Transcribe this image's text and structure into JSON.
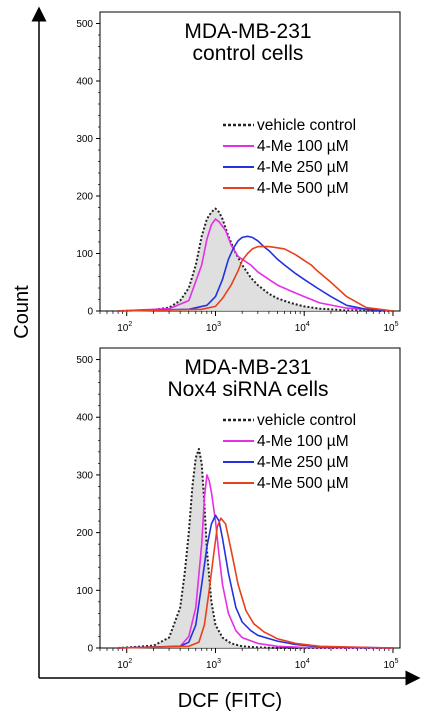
{
  "ylabel": "Count",
  "xlabel": "DCF (FITC)",
  "chart_data": [
    {
      "type": "line",
      "title_lines": [
        "MDA-MB-231",
        "control cells"
      ],
      "x_scale": "log",
      "xlim": [
        50,
        120000
      ],
      "ylim": [
        0,
        520
      ],
      "y_ticks": [
        0,
        100,
        200,
        300,
        400,
        500
      ],
      "x_ticks": [
        {
          "value": 100,
          "base": "10",
          "exp": "2"
        },
        {
          "value": 1000,
          "base": "10",
          "exp": "3"
        },
        {
          "value": 10000,
          "base": "10",
          "exp": "4"
        },
        {
          "value": 100000,
          "base": "10",
          "exp": "5"
        }
      ],
      "legend_position": "top-right",
      "series": [
        {
          "name": "vehicle control",
          "color": "#222222",
          "dashed": true,
          "filled": true,
          "x": [
            80,
            200,
            300,
            400,
            500,
            600,
            700,
            800,
            900,
            1000,
            1100,
            1200,
            1400,
            1700,
            2000,
            2500,
            3000,
            4000,
            5000,
            7000,
            10000,
            15000,
            30000,
            100000
          ],
          "y": [
            0,
            2,
            6,
            18,
            40,
            80,
            130,
            160,
            172,
            178,
            172,
            160,
            130,
            100,
            80,
            58,
            45,
            30,
            22,
            14,
            8,
            4,
            1,
            0
          ]
        },
        {
          "name": "4-Me 100 µM",
          "color": "#e62ee6",
          "dashed": false,
          "filled": false,
          "x": [
            80,
            300,
            500,
            700,
            800,
            900,
            1000,
            1100,
            1300,
            1500,
            1800,
            2000,
            2500,
            3000,
            4000,
            5000,
            7000,
            10000,
            15000,
            30000,
            100000
          ],
          "y": [
            0,
            4,
            18,
            80,
            125,
            150,
            160,
            155,
            140,
            115,
            95,
            90,
            80,
            68,
            55,
            45,
            35,
            25,
            14,
            5,
            0
          ]
        },
        {
          "name": "4-Me 250 µM",
          "color": "#2233dd",
          "dashed": false,
          "filled": false,
          "x": [
            80,
            500,
            800,
            1000,
            1200,
            1400,
            1600,
            1800,
            2000,
            2300,
            2600,
            3000,
            3500,
            4000,
            5000,
            6000,
            8000,
            10000,
            14000,
            20000,
            30000,
            50000,
            100000
          ],
          "y": [
            0,
            3,
            10,
            25,
            55,
            90,
            110,
            122,
            128,
            130,
            128,
            122,
            112,
            105,
            90,
            80,
            65,
            55,
            40,
            25,
            10,
            3,
            0
          ]
        },
        {
          "name": "4-Me 500 µM",
          "color": "#e8401a",
          "dashed": false,
          "filled": false,
          "x": [
            80,
            700,
            1000,
            1200,
            1500,
            1800,
            2000,
            2300,
            2600,
            3000,
            4000,
            5000,
            6000,
            8000,
            10000,
            12000,
            14000,
            20000,
            30000,
            50000,
            100000
          ],
          "y": [
            0,
            3,
            8,
            22,
            45,
            70,
            88,
            100,
            108,
            112,
            112,
            110,
            108,
            98,
            88,
            80,
            70,
            50,
            25,
            6,
            0
          ]
        }
      ]
    },
    {
      "type": "line",
      "title_lines": [
        "MDA-MB-231",
        "Nox4 siRNA cells"
      ],
      "x_scale": "log",
      "xlim": [
        50,
        120000
      ],
      "ylim": [
        0,
        520
      ],
      "y_ticks": [
        0,
        100,
        200,
        300,
        400,
        500
      ],
      "x_ticks": [
        {
          "value": 100,
          "base": "10",
          "exp": "2"
        },
        {
          "value": 1000,
          "base": "10",
          "exp": "3"
        },
        {
          "value": 10000,
          "base": "10",
          "exp": "4"
        },
        {
          "value": 100000,
          "base": "10",
          "exp": "5"
        }
      ],
      "legend_position": "top-right",
      "series": [
        {
          "name": "vehicle control",
          "color": "#222222",
          "dashed": true,
          "filled": true,
          "x": [
            80,
            200,
            300,
            400,
            450,
            500,
            550,
            600,
            650,
            700,
            750,
            800,
            900,
            1000,
            1200,
            1500,
            2000,
            3000,
            5000,
            10000,
            100000
          ],
          "y": [
            0,
            4,
            18,
            70,
            130,
            200,
            280,
            330,
            345,
            320,
            250,
            170,
            80,
            40,
            18,
            8,
            3,
            1,
            0,
            0,
            0
          ]
        },
        {
          "name": "4-Me 100 µM",
          "color": "#e62ee6",
          "dashed": false,
          "filled": false,
          "x": [
            80,
            400,
            500,
            600,
            700,
            750,
            800,
            850,
            900,
            1000,
            1100,
            1200,
            1400,
            1700,
            2000,
            3000,
            5000,
            10000,
            100000
          ],
          "y": [
            0,
            3,
            20,
            70,
            180,
            260,
            300,
            290,
            270,
            220,
            160,
            110,
            60,
            30,
            18,
            8,
            3,
            1,
            0
          ]
        },
        {
          "name": "4-Me 250 µM",
          "color": "#2233dd",
          "dashed": false,
          "filled": false,
          "x": [
            80,
            400,
            500,
            600,
            700,
            800,
            900,
            1000,
            1100,
            1200,
            1400,
            1700,
            2000,
            2500,
            3000,
            5000,
            8000,
            15000,
            100000
          ],
          "y": [
            0,
            3,
            10,
            40,
            110,
            175,
            215,
            230,
            220,
            190,
            130,
            70,
            45,
            30,
            22,
            12,
            6,
            2,
            0
          ]
        },
        {
          "name": "4-Me 500 µM",
          "color": "#e8401a",
          "dashed": false,
          "filled": false,
          "x": [
            80,
            500,
            650,
            750,
            850,
            950,
            1050,
            1150,
            1300,
            1500,
            1800,
            2200,
            2700,
            3500,
            5000,
            8000,
            15000,
            100000
          ],
          "y": [
            0,
            3,
            10,
            40,
            100,
            160,
            210,
            225,
            215,
            170,
            110,
            65,
            42,
            28,
            16,
            8,
            3,
            0
          ]
        }
      ]
    }
  ]
}
